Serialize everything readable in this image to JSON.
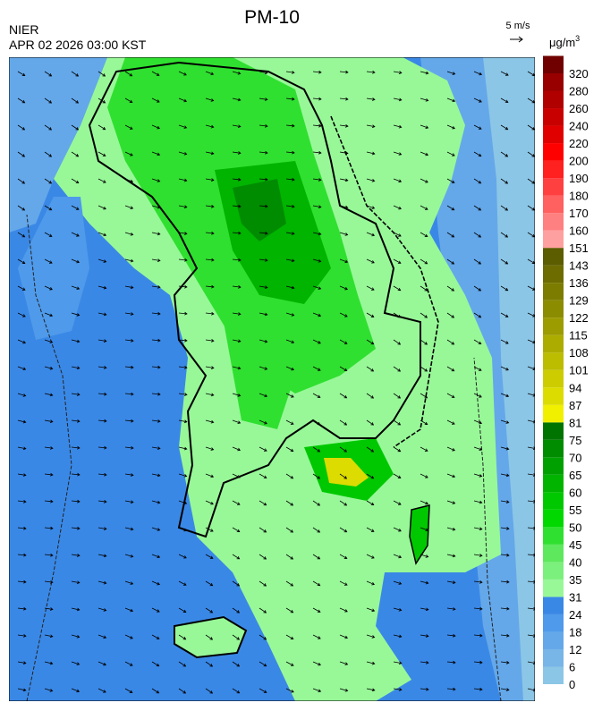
{
  "header": {
    "title": "PM-10",
    "agency": "NIER",
    "timestamp": "APR 02 2026 03:00 KST",
    "wind_scale": "5 m/s"
  },
  "legend": {
    "unit_base": "μg/m",
    "unit_exp": "3",
    "levels": [
      0,
      6,
      12,
      18,
      24,
      31,
      35,
      40,
      45,
      50,
      55,
      60,
      65,
      70,
      75,
      81,
      87,
      94,
      101,
      108,
      115,
      122,
      129,
      136,
      143,
      151,
      160,
      170,
      180,
      190,
      200,
      220,
      240,
      260,
      280,
      320
    ],
    "colors": [
      "#8cc6e6",
      "#78b6e8",
      "#64a8ea",
      "#4f9aea",
      "#3a88e6",
      "#98f898",
      "#7cf07c",
      "#5ee85e",
      "#30e030",
      "#00d800",
      "#00c800",
      "#00b400",
      "#00a000",
      "#008c00",
      "#007400",
      "#f0f000",
      "#dcdc00",
      "#cccc00",
      "#bcbc00",
      "#acac00",
      "#9c9c00",
      "#8c8c00",
      "#7c7c00",
      "#6c6c00",
      "#5c5c00",
      "#ffa0a0",
      "#ff8080",
      "#ff6060",
      "#ff4040",
      "#ff2020",
      "#ff0000",
      "#e00000",
      "#c80000",
      "#b00000",
      "#980000",
      "#700000"
    ]
  }
}
